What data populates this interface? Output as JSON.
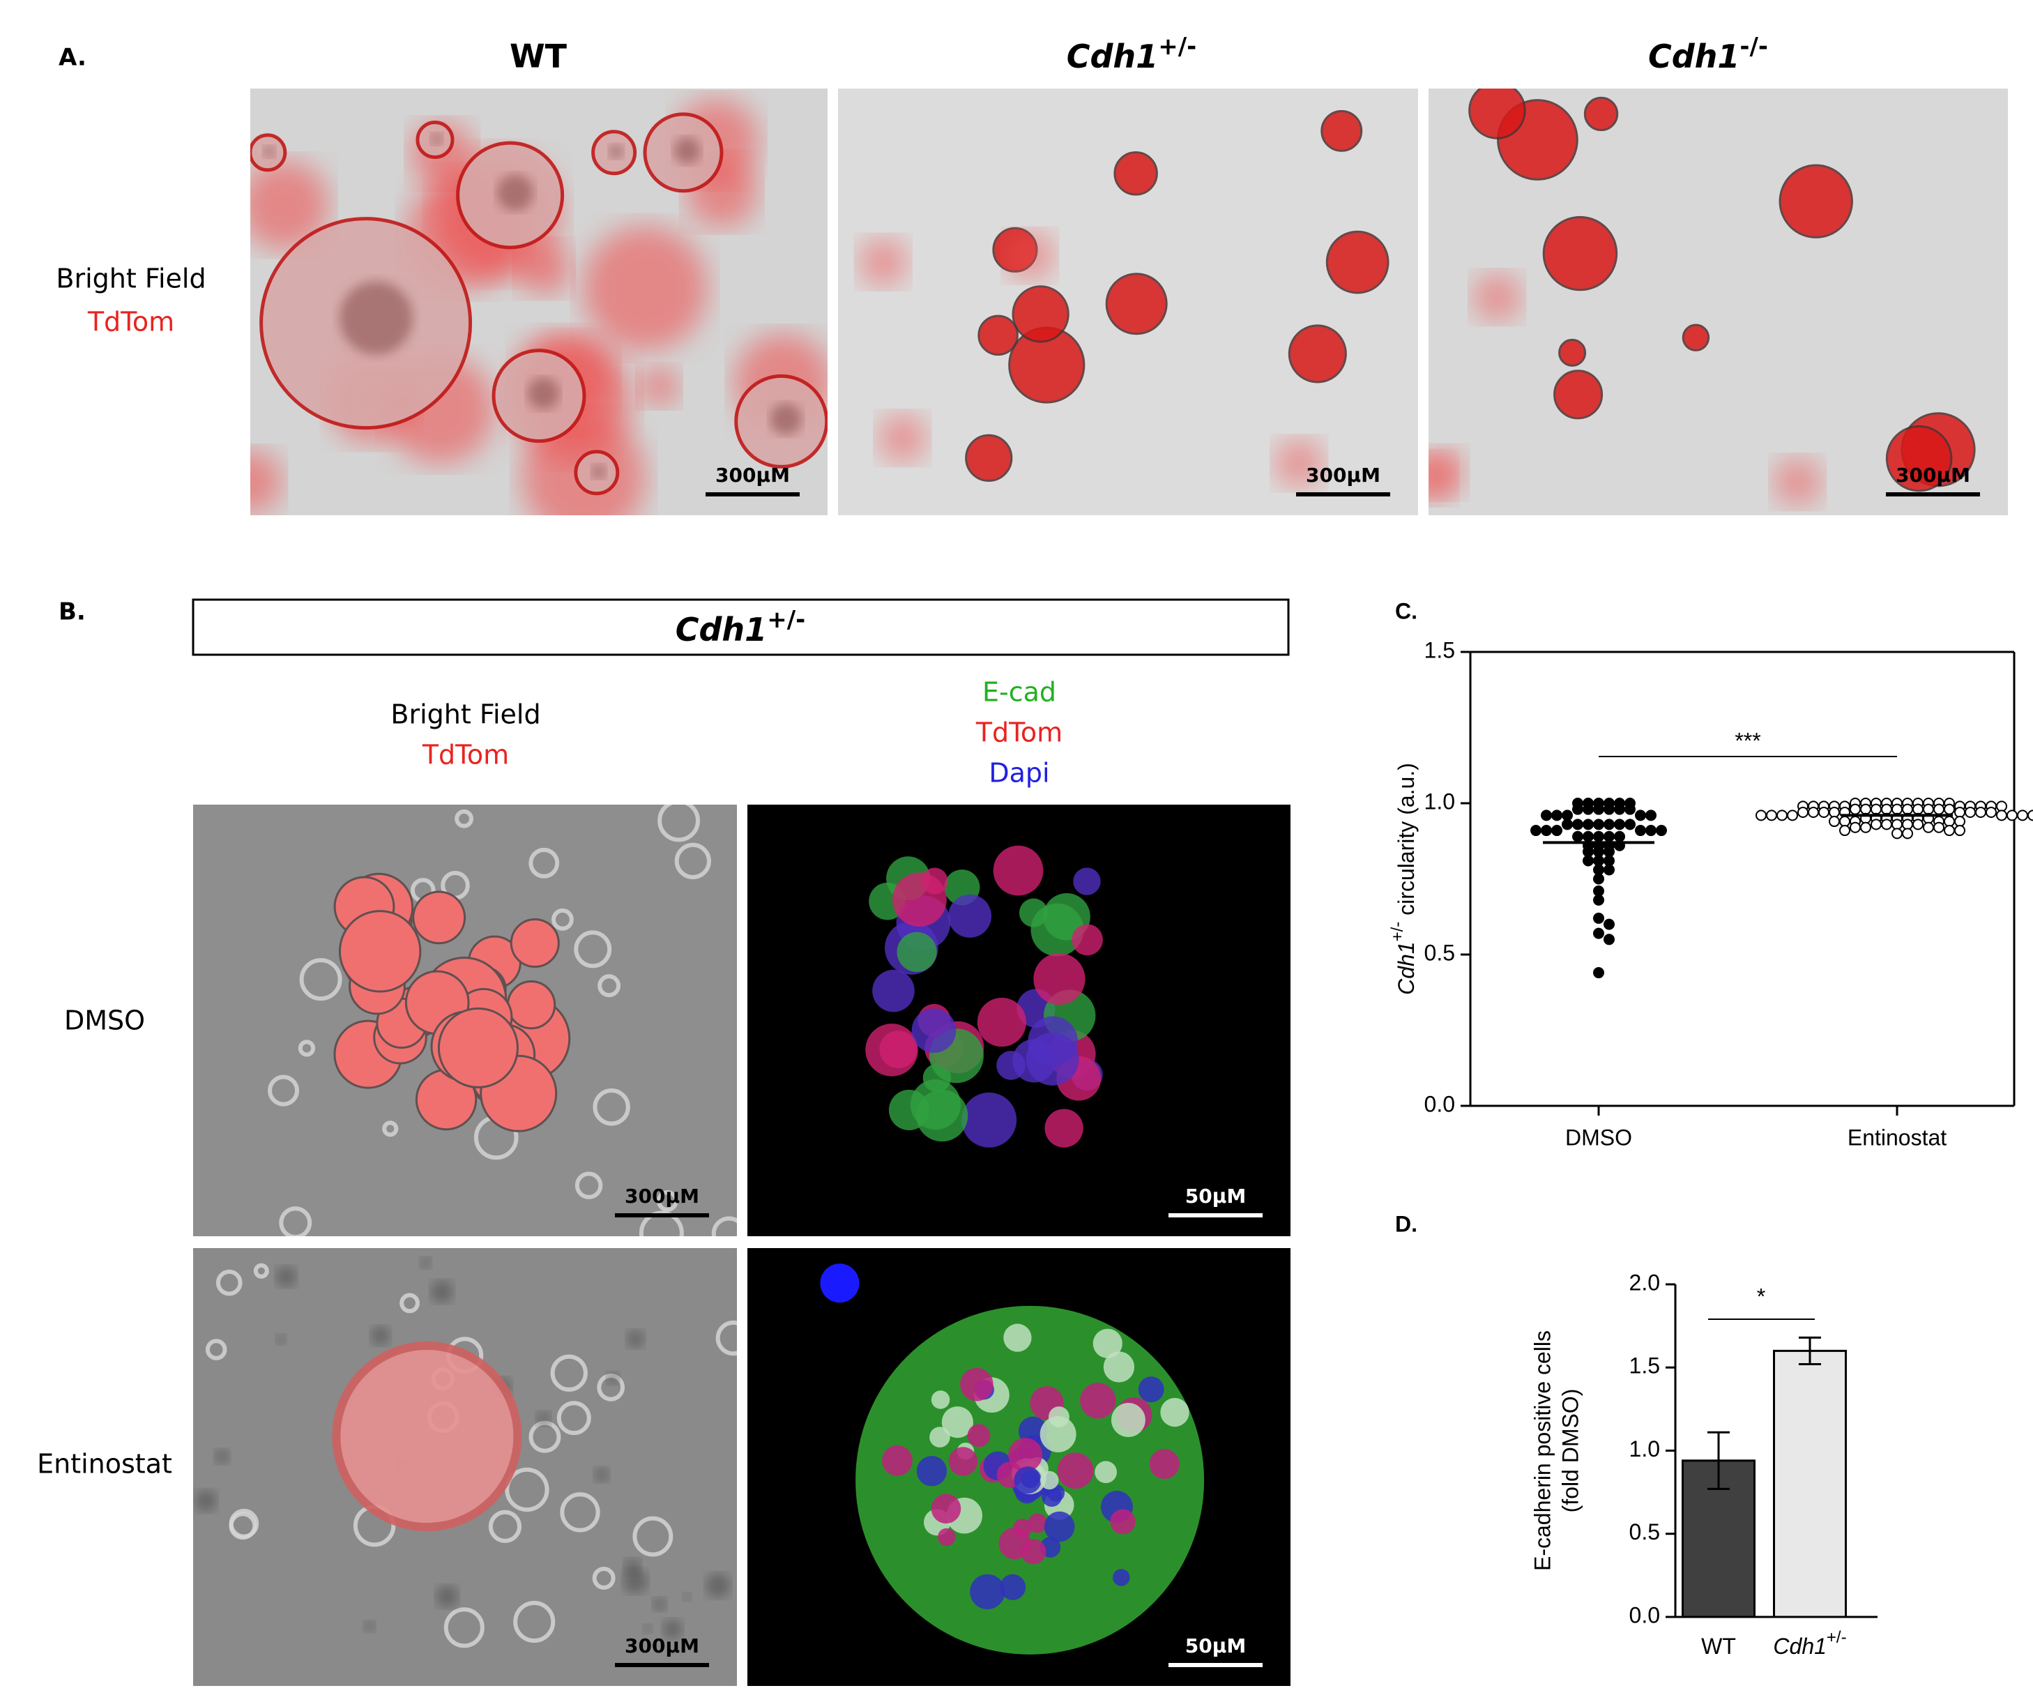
{
  "panel_a": {
    "label": "A.",
    "columns": [
      {
        "name": "WT",
        "scale_bar": "300μM"
      },
      {
        "name": "Cdh1",
        "sup": "+/-",
        "scale_bar": "300μM"
      },
      {
        "name": "Cdh1",
        "sup": "-/-",
        "scale_bar": "300μM"
      }
    ],
    "row_label": [
      "Bright Field",
      "TdTom"
    ]
  },
  "panel_b": {
    "label": "B.",
    "header": {
      "name": "Cdh1",
      "sup": "+/-"
    },
    "columns": [
      [
        "Bright Field",
        "TdTom"
      ],
      [
        "E-cad",
        "TdTom",
        "Dapi"
      ]
    ],
    "rows": [
      {
        "name": "DMSO",
        "scale_bars": [
          "300μM",
          "50μM"
        ]
      },
      {
        "name": "Entinostat",
        "scale_bars": [
          "300μM",
          "50μM"
        ]
      }
    ]
  },
  "chart_data": [
    {
      "type": "scatter",
      "panel_label": "C.",
      "y_label": {
        "main": "Cdh1",
        "sup": "+/-",
        "rest": " circularity (a.u.)"
      },
      "categories": [
        "DMSO",
        "Entinostat"
      ],
      "groups": [
        {
          "color": "#000000",
          "mean": 0.87,
          "values": [
            1.0,
            1.0,
            1.0,
            1.0,
            1.0,
            1.0,
            0.98,
            0.98,
            0.98,
            0.98,
            0.98,
            0.98,
            0.96,
            0.96,
            0.96,
            0.96,
            0.96,
            0.93,
            0.93,
            0.93,
            0.93,
            0.93,
            0.93,
            0.93,
            0.91,
            0.91,
            0.91,
            0.91,
            0.91,
            0.91,
            0.89,
            0.89,
            0.89,
            0.89,
            0.89,
            0.86,
            0.86,
            0.86,
            0.86,
            0.84,
            0.84,
            0.84,
            0.81,
            0.81,
            0.81,
            0.78,
            0.78,
            0.75,
            0.71,
            0.68,
            0.62,
            0.6,
            0.57,
            0.55,
            0.44
          ]
        },
        {
          "color": "#ffffff",
          "mean": 0.96,
          "values": [
            1.0,
            1.0,
            1.0,
            1.0,
            1.0,
            1.0,
            1.0,
            1.0,
            1.0,
            1.0,
            0.99,
            0.99,
            0.99,
            0.99,
            0.99,
            0.99,
            0.99,
            0.99,
            0.99,
            0.99,
            0.98,
            0.98,
            0.98,
            0.98,
            0.98,
            0.98,
            0.98,
            0.98,
            0.98,
            0.98,
            0.97,
            0.97,
            0.97,
            0.97,
            0.97,
            0.97,
            0.97,
            0.97,
            0.97,
            0.96,
            0.96,
            0.96,
            0.96,
            0.96,
            0.96,
            0.96,
            0.96,
            0.95,
            0.95,
            0.95,
            0.95,
            0.95,
            0.95,
            0.95,
            0.94,
            0.94,
            0.94,
            0.94,
            0.94,
            0.94,
            0.93,
            0.93,
            0.93,
            0.93,
            0.93,
            0.92,
            0.92,
            0.92,
            0.92,
            0.91,
            0.91,
            0.91,
            0.9,
            0.9
          ]
        }
      ],
      "significance": "***",
      "ylim": [
        0,
        1.5
      ],
      "yticks": [
        {
          "value": 0,
          "label": "0.0"
        },
        0.5,
        {
          "value": 1,
          "label": "1.0"
        },
        1.5
      ]
    },
    {
      "type": "bar",
      "panel_label": "D.",
      "y_label": [
        "E-cadherin positive cells",
        "(fold DMSO)"
      ],
      "categories": [
        "WT",
        "Cdh1"
      ],
      "category_superscripts": {
        "1": "+/-"
      },
      "values": [
        0.94,
        1.6
      ],
      "errors": [
        0.17,
        0.08
      ],
      "colors": [
        "#404040",
        "#e8e8e8"
      ],
      "significance": "*",
      "ylim": [
        0,
        2
      ],
      "yticks": [
        {
          "value": 0,
          "label": "0.0"
        },
        0.5,
        {
          "value": 1,
          "label": "1.0"
        },
        1.5,
        {
          "value": 2,
          "label": "2.0"
        }
      ]
    }
  ]
}
